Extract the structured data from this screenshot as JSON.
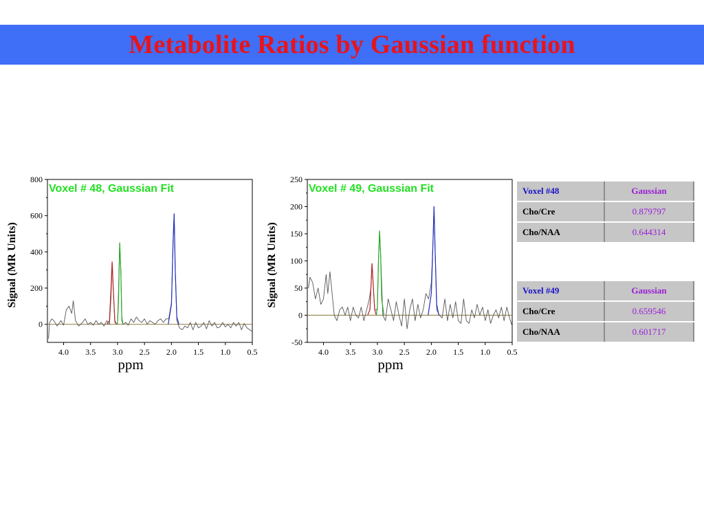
{
  "header": {
    "title": "Metabolite Ratios by Gaussian function"
  },
  "colors": {
    "title_bar": "#3f6ef7",
    "title_text": "#e8141b",
    "panel_title": "#22e022",
    "raw_signal": "#555555",
    "baseline": "#9a8a55",
    "cho_peak": "#b22222",
    "cre_peak": "#22aa22",
    "naa_peak": "#1f2fbf",
    "table_header_label": "#1c14c8",
    "table_value": "#9a1ed6",
    "table_cell_bg": "#c6c6c6"
  },
  "chart_data": [
    {
      "type": "line",
      "title": "Voxel # 48, Gaussian Fit",
      "xlabel": "ppm",
      "ylabel": "Signal (MR Units)",
      "xlim": [
        4.3,
        0.5
      ],
      "x_reversed": true,
      "ylim": [
        -100,
        800
      ],
      "xticks": [
        "4.0",
        "3.5",
        "3.0",
        "2.5",
        "2.0",
        "1.5",
        "1.0",
        "0.5"
      ],
      "yticks": [
        "0",
        "200",
        "400",
        "600",
        "800"
      ],
      "series": [
        {
          "type": "raw",
          "x": [
            4.28,
            4.26,
            4.22,
            4.18,
            4.12,
            4.05,
            4.0,
            3.95,
            3.9,
            3.85,
            3.82,
            3.78,
            3.72,
            3.65,
            3.6,
            3.55,
            3.5,
            3.45,
            3.4,
            3.35,
            3.3,
            3.25,
            3.2,
            3.15,
            3.12,
            3.1,
            3.08,
            3.05,
            3.0,
            2.98,
            2.96,
            2.94,
            2.92,
            2.9,
            2.85,
            2.8,
            2.75,
            2.7,
            2.65,
            2.6,
            2.55,
            2.5,
            2.45,
            2.4,
            2.35,
            2.3,
            2.25,
            2.2,
            2.15,
            2.1,
            2.05,
            2.0,
            1.97,
            1.95,
            1.93,
            1.9,
            1.85,
            1.8,
            1.75,
            1.7,
            1.65,
            1.6,
            1.55,
            1.5,
            1.45,
            1.4,
            1.35,
            1.3,
            1.25,
            1.2,
            1.15,
            1.1,
            1.05,
            1.0,
            0.95,
            0.9,
            0.85,
            0.8,
            0.75,
            0.7,
            0.65,
            0.6,
            0.55,
            0.5
          ],
          "y": [
            -80,
            10,
            30,
            20,
            -10,
            20,
            -5,
            80,
            100,
            60,
            130,
            20,
            -10,
            10,
            30,
            0,
            10,
            -5,
            20,
            0,
            10,
            -10,
            20,
            0,
            150,
            340,
            200,
            10,
            0,
            200,
            450,
            300,
            20,
            0,
            10,
            -5,
            30,
            10,
            40,
            20,
            10,
            30,
            0,
            20,
            10,
            0,
            20,
            30,
            10,
            30,
            30,
            120,
            450,
            610,
            300,
            20,
            -20,
            -30,
            -10,
            -20,
            10,
            -30,
            10,
            -20,
            -10,
            10,
            -25,
            20,
            -10,
            10,
            -20,
            -15,
            10,
            -15,
            0,
            -20,
            10,
            -10,
            10,
            -30,
            5,
            -20,
            -30,
            -40
          ]
        },
        {
          "type": "fit_cho",
          "x": [
            3.2,
            3.15,
            3.12,
            3.1,
            3.08,
            3.05,
            3.02
          ],
          "y": [
            0,
            20,
            200,
            345,
            200,
            20,
            0
          ]
        },
        {
          "type": "fit_cre",
          "x": [
            3.0,
            2.98,
            2.96,
            2.94,
            2.92,
            2.9
          ],
          "y": [
            0,
            150,
            450,
            300,
            40,
            0
          ]
        },
        {
          "type": "fit_naa",
          "x": [
            2.06,
            2.0,
            1.97,
            1.95,
            1.93,
            1.9,
            1.86
          ],
          "y": [
            0,
            110,
            450,
            610,
            300,
            40,
            0
          ]
        }
      ]
    },
    {
      "type": "line",
      "title": "Voxel # 49, Gaussian Fit",
      "xlabel": "ppm",
      "ylabel": "Signal (MR Units)",
      "xlim": [
        4.3,
        0.5
      ],
      "x_reversed": true,
      "ylim": [
        -50,
        250
      ],
      "xticks": [
        "4.0",
        "3.5",
        "3.0",
        "2.5",
        "2.0",
        "1.5",
        "1.0",
        "0.5"
      ],
      "yticks": [
        "-50",
        "0",
        "50",
        "100",
        "150",
        "200",
        "250"
      ],
      "series": [
        {
          "type": "raw",
          "x": [
            4.28,
            4.25,
            4.2,
            4.15,
            4.1,
            4.05,
            4.0,
            3.95,
            3.92,
            3.88,
            3.85,
            3.8,
            3.75,
            3.7,
            3.65,
            3.6,
            3.55,
            3.5,
            3.45,
            3.4,
            3.35,
            3.3,
            3.25,
            3.2,
            3.15,
            3.12,
            3.1,
            3.08,
            3.05,
            3.0,
            2.98,
            2.96,
            2.94,
            2.9,
            2.85,
            2.8,
            2.75,
            2.7,
            2.65,
            2.6,
            2.55,
            2.5,
            2.45,
            2.4,
            2.35,
            2.3,
            2.25,
            2.2,
            2.15,
            2.1,
            2.05,
            2.0,
            1.97,
            1.95,
            1.93,
            1.9,
            1.85,
            1.8,
            1.75,
            1.7,
            1.65,
            1.6,
            1.55,
            1.5,
            1.45,
            1.4,
            1.35,
            1.3,
            1.25,
            1.2,
            1.15,
            1.1,
            1.05,
            1.0,
            0.95,
            0.9,
            0.85,
            0.8,
            0.75,
            0.7,
            0.65,
            0.6,
            0.55,
            0.5
          ],
          "y": [
            50,
            70,
            60,
            30,
            50,
            20,
            30,
            75,
            40,
            80,
            50,
            0,
            -10,
            10,
            15,
            0,
            15,
            -10,
            15,
            0,
            -5,
            15,
            -10,
            10,
            30,
            50,
            95,
            60,
            10,
            10,
            100,
            155,
            110,
            0,
            -10,
            30,
            10,
            -10,
            25,
            0,
            -20,
            30,
            -25,
            10,
            30,
            -10,
            20,
            -5,
            10,
            40,
            30,
            60,
            130,
            200,
            120,
            10,
            0,
            -5,
            30,
            -10,
            20,
            -5,
            25,
            -10,
            -15,
            30,
            -10,
            -15,
            10,
            -5,
            20,
            0,
            15,
            -10,
            10,
            -15,
            0,
            10,
            -5,
            15,
            -10,
            15,
            -5,
            -20
          ]
        },
        {
          "type": "fit_cho",
          "x": [
            3.18,
            3.14,
            3.12,
            3.1,
            3.08,
            3.05,
            3.02
          ],
          "y": [
            0,
            10,
            50,
            95,
            60,
            10,
            0
          ]
        },
        {
          "type": "fit_cre",
          "x": [
            3.02,
            3.0,
            2.98,
            2.96,
            2.94,
            2.92,
            2.88
          ],
          "y": [
            0,
            15,
            100,
            155,
            110,
            30,
            0
          ]
        },
        {
          "type": "fit_naa",
          "x": [
            2.06,
            2.0,
            1.97,
            1.95,
            1.93,
            1.9,
            1.86
          ],
          "y": [
            0,
            40,
            130,
            200,
            120,
            20,
            0
          ]
        }
      ]
    }
  ],
  "tables": [
    {
      "header": {
        "label": "Voxel #48",
        "value": "Gaussian"
      },
      "rows": [
        {
          "label": "Cho/Cre",
          "value": "0.879797"
        },
        {
          "label": "Cho/NAA",
          "value": "0.644314"
        }
      ]
    },
    {
      "header": {
        "label": "Voxel #49",
        "value": "Gaussian"
      },
      "rows": [
        {
          "label": "Cho/Cre",
          "value": "0.659546"
        },
        {
          "label": "Cho/NAA",
          "value": "0.601717"
        }
      ]
    }
  ]
}
